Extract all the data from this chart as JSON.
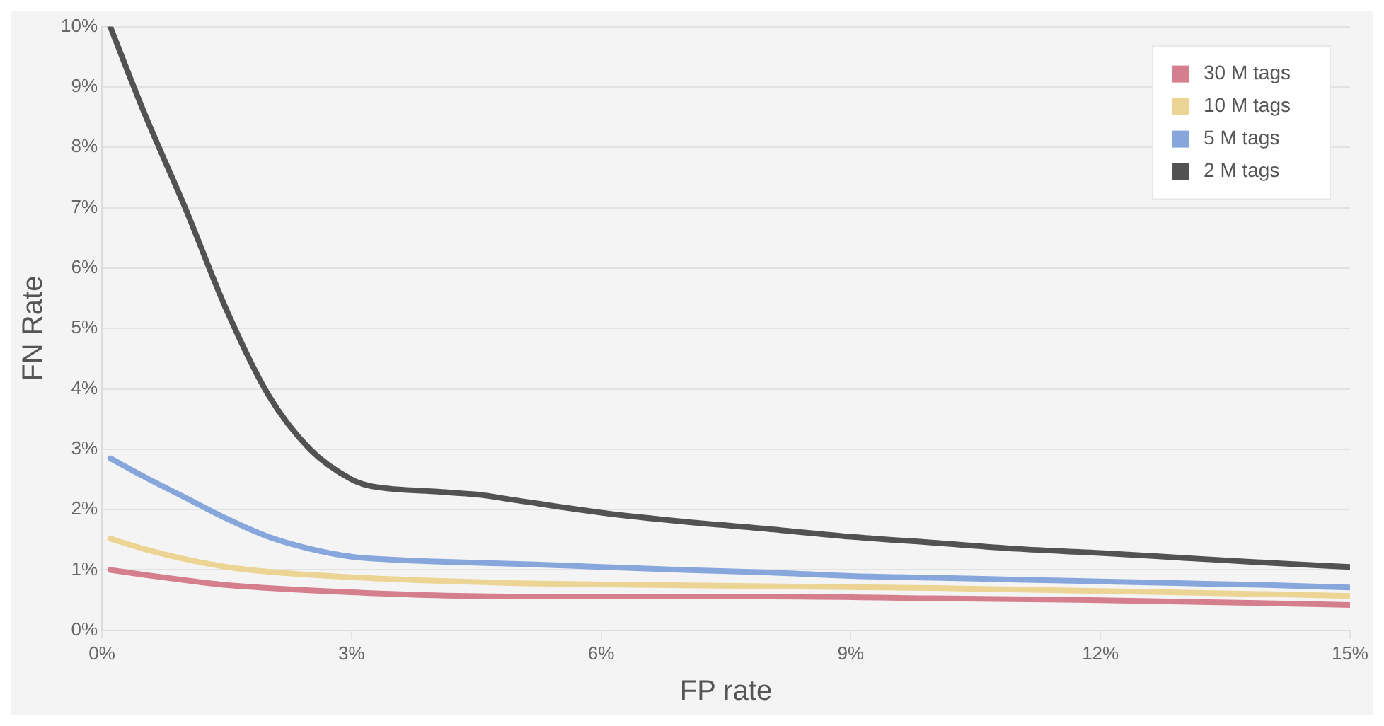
{
  "chart_data": {
    "type": "line",
    "xlabel": "FP rate",
    "ylabel": "FN Rate",
    "xlim": [
      0,
      15
    ],
    "xticks": [
      {
        "value": 0,
        "label": "0%"
      },
      {
        "value": 3,
        "label": "3%"
      },
      {
        "value": 6,
        "label": "6%"
      },
      {
        "value": 9,
        "label": "9%"
      },
      {
        "value": 12,
        "label": "12%"
      },
      {
        "value": 15,
        "label": "15%"
      }
    ],
    "ylim": [
      0,
      10
    ],
    "yticks": [
      {
        "value": 0,
        "label": "0%"
      },
      {
        "value": 1,
        "label": "1%"
      },
      {
        "value": 2,
        "label": "2%"
      },
      {
        "value": 3,
        "label": "3%"
      },
      {
        "value": 4,
        "label": "4%"
      },
      {
        "value": 5,
        "label": "5%"
      },
      {
        "value": 6,
        "label": "6%"
      },
      {
        "value": 7,
        "label": "7%"
      },
      {
        "value": 8,
        "label": "8%"
      },
      {
        "value": 9,
        "label": "9%"
      },
      {
        "value": 10,
        "label": "10%"
      }
    ],
    "grid": "y",
    "legend": "top right",
    "marker": "none",
    "line_style": "solid",
    "series": [
      {
        "name": "30 M tags",
        "color": "#d57f8e",
        "x": [
          0.1,
          0.5,
          1,
          1.5,
          2,
          3,
          4,
          5,
          6,
          8,
          10,
          12,
          14,
          15
        ],
        "values": [
          1.0,
          0.92,
          0.83,
          0.75,
          0.7,
          0.63,
          0.58,
          0.56,
          0.56,
          0.56,
          0.53,
          0.5,
          0.45,
          0.42
        ]
      },
      {
        "name": "10 M tags",
        "color": "#ecd494",
        "x": [
          0.1,
          0.5,
          1,
          1.5,
          2,
          3,
          4,
          5,
          6,
          8,
          10,
          12,
          14,
          15
        ],
        "values": [
          1.52,
          1.35,
          1.18,
          1.05,
          0.97,
          0.88,
          0.82,
          0.78,
          0.76,
          0.73,
          0.7,
          0.65,
          0.6,
          0.57
        ]
      },
      {
        "name": "5 M tags",
        "color": "#86a6dc",
        "x": [
          0.1,
          0.5,
          1,
          1.5,
          2,
          2.5,
          3,
          3.5,
          4,
          5,
          6,
          7,
          8,
          9,
          10,
          11,
          12,
          13,
          14,
          15
        ],
        "values": [
          2.85,
          2.55,
          2.2,
          1.85,
          1.55,
          1.35,
          1.22,
          1.17,
          1.14,
          1.1,
          1.05,
          1.0,
          0.96,
          0.9,
          0.87,
          0.84,
          0.81,
          0.78,
          0.75,
          0.71
        ]
      },
      {
        "name": "2 M tags",
        "color": "#525252",
        "x": [
          0.1,
          0.5,
          1,
          1.5,
          2,
          2.5,
          3,
          3.2,
          4,
          4.5,
          5,
          6,
          7,
          8,
          9,
          10,
          11,
          12,
          13,
          14,
          15
        ],
        "values": [
          10,
          8.6,
          7.0,
          5.3,
          3.9,
          3.0,
          2.5,
          2.4,
          2.3,
          2.25,
          2.15,
          1.95,
          1.8,
          1.68,
          1.55,
          1.45,
          1.35,
          1.28,
          1.2,
          1.12,
          1.05
        ]
      }
    ]
  }
}
